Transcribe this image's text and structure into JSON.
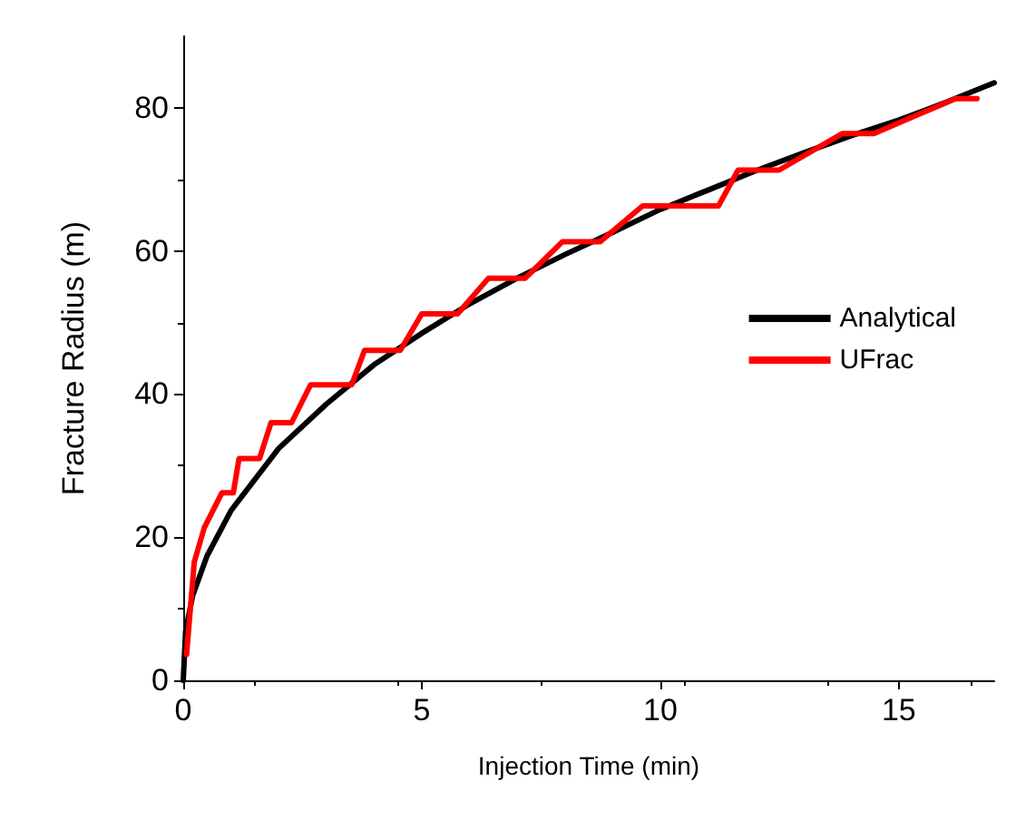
{
  "chart_data": {
    "type": "line",
    "xlabel": "Injection Time (min)",
    "ylabel": "Fracture Radius (m)",
    "xlim": [
      0,
      17
    ],
    "ylim": [
      0,
      90
    ],
    "xticks": [
      0,
      5,
      10,
      15
    ],
    "yticks": [
      0,
      20,
      40,
      60,
      80
    ],
    "grid": false,
    "legend": "right",
    "marker": "none",
    "line_style": "solid",
    "series": [
      {
        "name": "Analytical",
        "color": "#000000",
        "x": [
          0,
          0.05,
          0.2,
          0.5,
          1,
          2,
          3,
          4,
          5,
          6,
          7,
          8,
          9,
          10,
          11,
          12,
          13,
          14,
          15,
          16,
          17
        ],
        "values": [
          0,
          6.9,
          11.9,
          17.4,
          23.7,
          32.4,
          38.6,
          44.1,
          48.5,
          52.6,
          56.2,
          59.5,
          62.6,
          65.8,
          68.5,
          71.2,
          73.7,
          76.1,
          78.3,
          80.8,
          83.5
        ]
      },
      {
        "name": "UFrac",
        "color": "#ff0000",
        "x": [
          0.07,
          0.23,
          0.44,
          0.81,
          1.05,
          1.17,
          1.6,
          1.84,
          2.27,
          2.67,
          3.53,
          3.8,
          4.55,
          5.0,
          5.75,
          6.4,
          7.17,
          7.95,
          8.74,
          9.63,
          11.22,
          11.63,
          12.49,
          13.81,
          14.48,
          16.19,
          16.64
        ],
        "values": [
          3.6,
          16.5,
          21.3,
          26.2,
          26.2,
          31,
          31,
          36,
          36,
          41.3,
          41.3,
          46.1,
          46.1,
          51.2,
          51.2,
          56.2,
          56.2,
          61.3,
          61.3,
          66.3,
          66.3,
          71.3,
          71.3,
          76.4,
          76.4,
          81.3,
          81.3
        ]
      }
    ]
  }
}
